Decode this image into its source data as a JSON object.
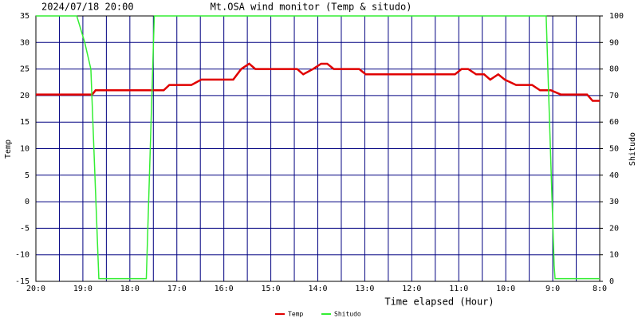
{
  "chart_data": {
    "type": "line",
    "header": "2024/07/18 20:00",
    "title": "Mt.OSA wind monitor (Temp & situdo)",
    "xlabel": "Time elapsed (Hour)",
    "ylabel": "Temp",
    "y2label": "Shitudo",
    "xlim": [
      0,
      12
    ],
    "xticks": [
      {
        "value": 0,
        "label": "20:0"
      },
      {
        "value": 1,
        "label": "19:0"
      },
      {
        "value": 2,
        "label": "18:0"
      },
      {
        "value": 3,
        "label": "17:0"
      },
      {
        "value": 4,
        "label": "16:0"
      },
      {
        "value": 5,
        "label": "15:0"
      },
      {
        "value": 6,
        "label": "14:0"
      },
      {
        "value": 7,
        "label": "13:0"
      },
      {
        "value": 8,
        "label": "12:0"
      },
      {
        "value": 9,
        "label": "11:0"
      },
      {
        "value": 10,
        "label": "10:0"
      },
      {
        "value": 11,
        "label": "9:0"
      },
      {
        "value": 12,
        "label": "8:0"
      }
    ],
    "xminorticks": [
      0.5,
      1.5,
      2.5,
      3.5,
      4.5,
      5.5,
      6.5,
      7.5,
      8.5,
      9.5,
      10.5,
      11.5
    ],
    "ylim": [
      -15,
      35
    ],
    "yticks": [
      -15,
      -10,
      -5,
      0,
      5,
      10,
      15,
      20,
      25,
      30,
      35
    ],
    "y2lim": [
      0,
      100
    ],
    "y2ticks": [
      0,
      10,
      20,
      30,
      40,
      50,
      60,
      70,
      80,
      90,
      100
    ],
    "grid": true,
    "grid_color": "#000080",
    "legend": "bottom",
    "series": [
      {
        "name": "Temp",
        "color": "#e00000",
        "x": [
          0,
          1.2,
          1.27,
          2.72,
          2.84,
          3.31,
          3.52,
          4.2,
          4.37,
          4.54,
          4.67,
          5.56,
          5.69,
          5.9,
          6.07,
          6.2,
          6.34,
          6.88,
          7.02,
          8.92,
          9.06,
          9.2,
          9.37,
          9.54,
          9.67,
          9.84,
          9.98,
          10.22,
          10.56,
          10.73,
          10.96,
          11.17,
          11.73,
          11.85,
          12
        ],
        "values": [
          20.2,
          20.2,
          21,
          21,
          22,
          22,
          23,
          23,
          25,
          26,
          25,
          25,
          24,
          25,
          26,
          26,
          25,
          25,
          24,
          24,
          25,
          25,
          24,
          24,
          23,
          24,
          23,
          22,
          22,
          21,
          21,
          20.2,
          20.2,
          19,
          19
        ]
      },
      {
        "name": "Shitudo",
        "color": "#33ee33",
        "axis": "y2",
        "x": [
          0,
          0.87,
          1.04,
          1.17,
          1.34,
          2.35,
          2.52,
          10.86,
          11.03,
          11.05,
          12
        ],
        "values": [
          100,
          100,
          90,
          80,
          1,
          1,
          100,
          100,
          6,
          1,
          1
        ]
      }
    ]
  }
}
